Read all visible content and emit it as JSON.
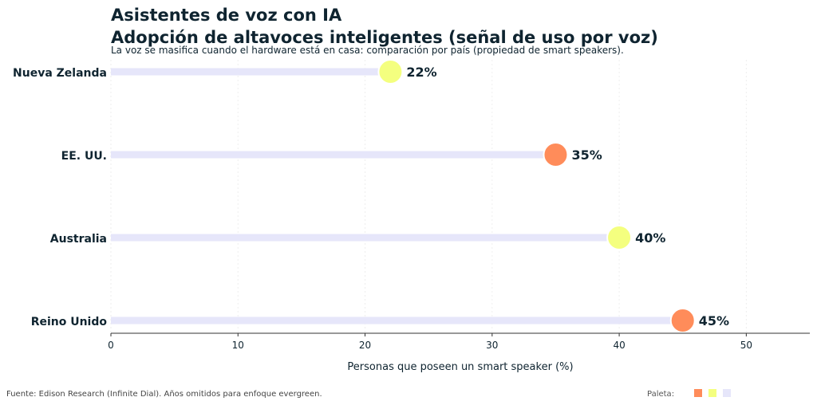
{
  "chart_data": {
    "type": "lollipop",
    "title": "Asistentes de voz con IA",
    "subtitle_main": "Adopción de altavoces inteligentes (señal de uso por voz)",
    "subtitle": "La voz se masifica cuando el hardware está en casa: comparación por país (propiedad de smart speakers).",
    "xlabel": "Personas que poseen un smart speaker (%)",
    "xlim": [
      0,
      55
    ],
    "xticks": [
      0,
      10,
      20,
      30,
      40,
      50
    ],
    "grid": "vertical",
    "categories": [
      "Nueva Zelanda",
      "EE. UU.",
      "Australia",
      "Reino Unido"
    ],
    "values": [
      22,
      35,
      40,
      45
    ],
    "labels": [
      "22%",
      "35%",
      "40%",
      "45%"
    ],
    "point_colors": [
      "#F4FF7F",
      "#FF8C5A",
      "#F4FF7F",
      "#FF8C5A"
    ],
    "bar_color": "#E6E6FA"
  },
  "footer": {
    "source": "Fuente: Edison Research (Infinite Dial). Años omitidos para enfoque evergreen.",
    "palette_label": "Paleta:",
    "palette": [
      "#FF8C5A",
      "#F4FF7F",
      "#E6E6FA"
    ]
  }
}
